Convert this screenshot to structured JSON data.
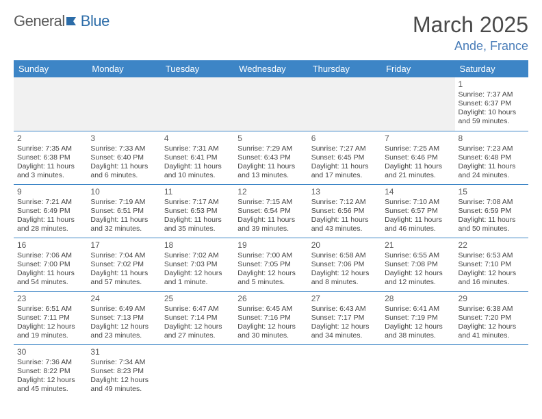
{
  "logo": {
    "text_a": "General",
    "text_b": "Blue",
    "accent": "#2c6ca8",
    "muted": "#5a5a5a"
  },
  "title": "March 2025",
  "location": "Ande, France",
  "columns": [
    "Sunday",
    "Monday",
    "Tuesday",
    "Wednesday",
    "Thursday",
    "Friday",
    "Saturday"
  ],
  "header_bg": "#3d85c6",
  "weeks": [
    [
      null,
      null,
      null,
      null,
      null,
      null,
      {
        "n": "1",
        "sr": "Sunrise: 7:37 AM",
        "ss": "Sunset: 6:37 PM",
        "dl": "Daylight: 10 hours and 59 minutes."
      }
    ],
    [
      {
        "n": "2",
        "sr": "Sunrise: 7:35 AM",
        "ss": "Sunset: 6:38 PM",
        "dl": "Daylight: 11 hours and 3 minutes."
      },
      {
        "n": "3",
        "sr": "Sunrise: 7:33 AM",
        "ss": "Sunset: 6:40 PM",
        "dl": "Daylight: 11 hours and 6 minutes."
      },
      {
        "n": "4",
        "sr": "Sunrise: 7:31 AM",
        "ss": "Sunset: 6:41 PM",
        "dl": "Daylight: 11 hours and 10 minutes."
      },
      {
        "n": "5",
        "sr": "Sunrise: 7:29 AM",
        "ss": "Sunset: 6:43 PM",
        "dl": "Daylight: 11 hours and 13 minutes."
      },
      {
        "n": "6",
        "sr": "Sunrise: 7:27 AM",
        "ss": "Sunset: 6:45 PM",
        "dl": "Daylight: 11 hours and 17 minutes."
      },
      {
        "n": "7",
        "sr": "Sunrise: 7:25 AM",
        "ss": "Sunset: 6:46 PM",
        "dl": "Daylight: 11 hours and 21 minutes."
      },
      {
        "n": "8",
        "sr": "Sunrise: 7:23 AM",
        "ss": "Sunset: 6:48 PM",
        "dl": "Daylight: 11 hours and 24 minutes."
      }
    ],
    [
      {
        "n": "9",
        "sr": "Sunrise: 7:21 AM",
        "ss": "Sunset: 6:49 PM",
        "dl": "Daylight: 11 hours and 28 minutes."
      },
      {
        "n": "10",
        "sr": "Sunrise: 7:19 AM",
        "ss": "Sunset: 6:51 PM",
        "dl": "Daylight: 11 hours and 32 minutes."
      },
      {
        "n": "11",
        "sr": "Sunrise: 7:17 AM",
        "ss": "Sunset: 6:53 PM",
        "dl": "Daylight: 11 hours and 35 minutes."
      },
      {
        "n": "12",
        "sr": "Sunrise: 7:15 AM",
        "ss": "Sunset: 6:54 PM",
        "dl": "Daylight: 11 hours and 39 minutes."
      },
      {
        "n": "13",
        "sr": "Sunrise: 7:12 AM",
        "ss": "Sunset: 6:56 PM",
        "dl": "Daylight: 11 hours and 43 minutes."
      },
      {
        "n": "14",
        "sr": "Sunrise: 7:10 AM",
        "ss": "Sunset: 6:57 PM",
        "dl": "Daylight: 11 hours and 46 minutes."
      },
      {
        "n": "15",
        "sr": "Sunrise: 7:08 AM",
        "ss": "Sunset: 6:59 PM",
        "dl": "Daylight: 11 hours and 50 minutes."
      }
    ],
    [
      {
        "n": "16",
        "sr": "Sunrise: 7:06 AM",
        "ss": "Sunset: 7:00 PM",
        "dl": "Daylight: 11 hours and 54 minutes."
      },
      {
        "n": "17",
        "sr": "Sunrise: 7:04 AM",
        "ss": "Sunset: 7:02 PM",
        "dl": "Daylight: 11 hours and 57 minutes."
      },
      {
        "n": "18",
        "sr": "Sunrise: 7:02 AM",
        "ss": "Sunset: 7:03 PM",
        "dl": "Daylight: 12 hours and 1 minute."
      },
      {
        "n": "19",
        "sr": "Sunrise: 7:00 AM",
        "ss": "Sunset: 7:05 PM",
        "dl": "Daylight: 12 hours and 5 minutes."
      },
      {
        "n": "20",
        "sr": "Sunrise: 6:58 AM",
        "ss": "Sunset: 7:06 PM",
        "dl": "Daylight: 12 hours and 8 minutes."
      },
      {
        "n": "21",
        "sr": "Sunrise: 6:55 AM",
        "ss": "Sunset: 7:08 PM",
        "dl": "Daylight: 12 hours and 12 minutes."
      },
      {
        "n": "22",
        "sr": "Sunrise: 6:53 AM",
        "ss": "Sunset: 7:10 PM",
        "dl": "Daylight: 12 hours and 16 minutes."
      }
    ],
    [
      {
        "n": "23",
        "sr": "Sunrise: 6:51 AM",
        "ss": "Sunset: 7:11 PM",
        "dl": "Daylight: 12 hours and 19 minutes."
      },
      {
        "n": "24",
        "sr": "Sunrise: 6:49 AM",
        "ss": "Sunset: 7:13 PM",
        "dl": "Daylight: 12 hours and 23 minutes."
      },
      {
        "n": "25",
        "sr": "Sunrise: 6:47 AM",
        "ss": "Sunset: 7:14 PM",
        "dl": "Daylight: 12 hours and 27 minutes."
      },
      {
        "n": "26",
        "sr": "Sunrise: 6:45 AM",
        "ss": "Sunset: 7:16 PM",
        "dl": "Daylight: 12 hours and 30 minutes."
      },
      {
        "n": "27",
        "sr": "Sunrise: 6:43 AM",
        "ss": "Sunset: 7:17 PM",
        "dl": "Daylight: 12 hours and 34 minutes."
      },
      {
        "n": "28",
        "sr": "Sunrise: 6:41 AM",
        "ss": "Sunset: 7:19 PM",
        "dl": "Daylight: 12 hours and 38 minutes."
      },
      {
        "n": "29",
        "sr": "Sunrise: 6:38 AM",
        "ss": "Sunset: 7:20 PM",
        "dl": "Daylight: 12 hours and 41 minutes."
      }
    ],
    [
      {
        "n": "30",
        "sr": "Sunrise: 7:36 AM",
        "ss": "Sunset: 8:22 PM",
        "dl": "Daylight: 12 hours and 45 minutes."
      },
      {
        "n": "31",
        "sr": "Sunrise: 7:34 AM",
        "ss": "Sunset: 8:23 PM",
        "dl": "Daylight: 12 hours and 49 minutes."
      },
      null,
      null,
      null,
      null,
      null
    ]
  ]
}
